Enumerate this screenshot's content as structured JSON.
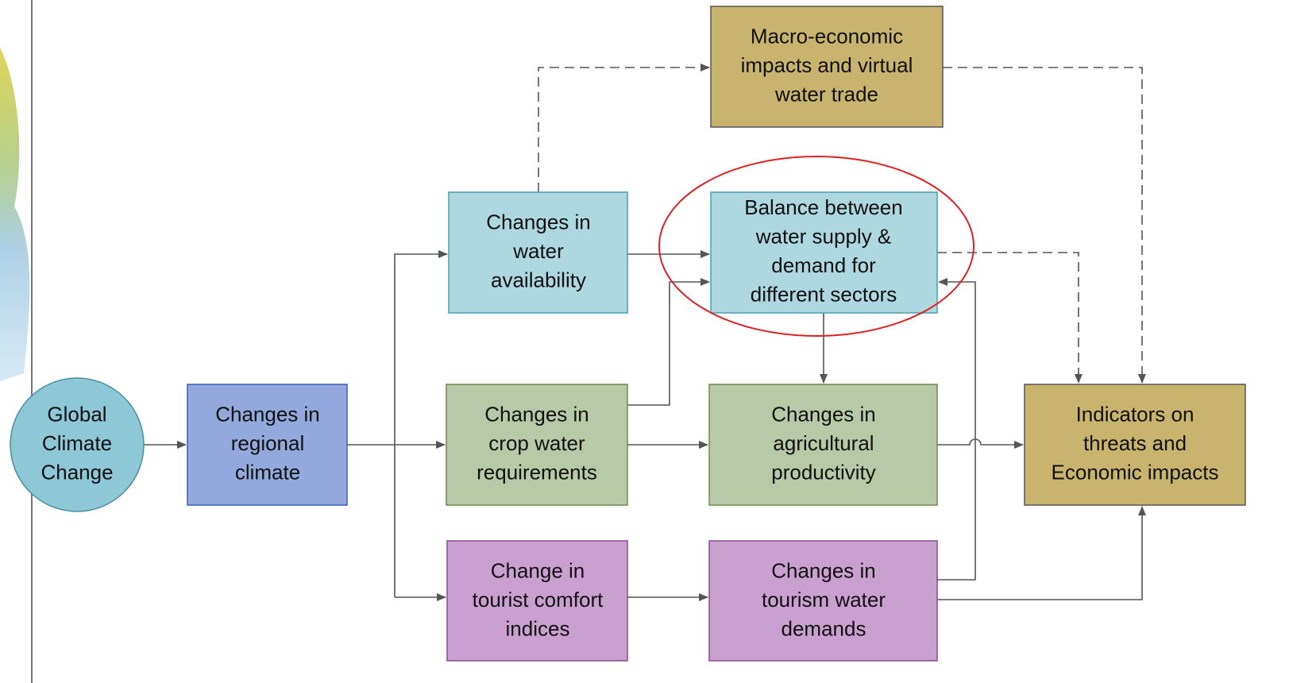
{
  "nodes": [
    {
      "lines": [
        "Global",
        "Climate",
        "Change"
      ]
    },
    {
      "lines": [
        "Changes in",
        "regional",
        "climate"
      ]
    },
    {
      "lines": [
        "Changes in",
        "water",
        "availability"
      ]
    },
    {
      "lines": [
        "Changes in",
        "crop water",
        "requirements"
      ]
    },
    {
      "lines": [
        "Change in",
        "tourist comfort",
        "indices"
      ]
    },
    {
      "lines": [
        "Macro-economic",
        "impacts and virtual",
        "water trade"
      ]
    },
    {
      "lines": [
        "Balance between",
        "water supply &",
        "demand for",
        "different sectors"
      ]
    },
    {
      "lines": [
        "Changes in",
        "agricultural",
        "productivity"
      ]
    },
    {
      "lines": [
        "Changes in",
        "tourism water",
        "demands"
      ]
    },
    {
      "lines": [
        "Indicators on",
        "threats and",
        "Economic impacts"
      ]
    }
  ]
}
